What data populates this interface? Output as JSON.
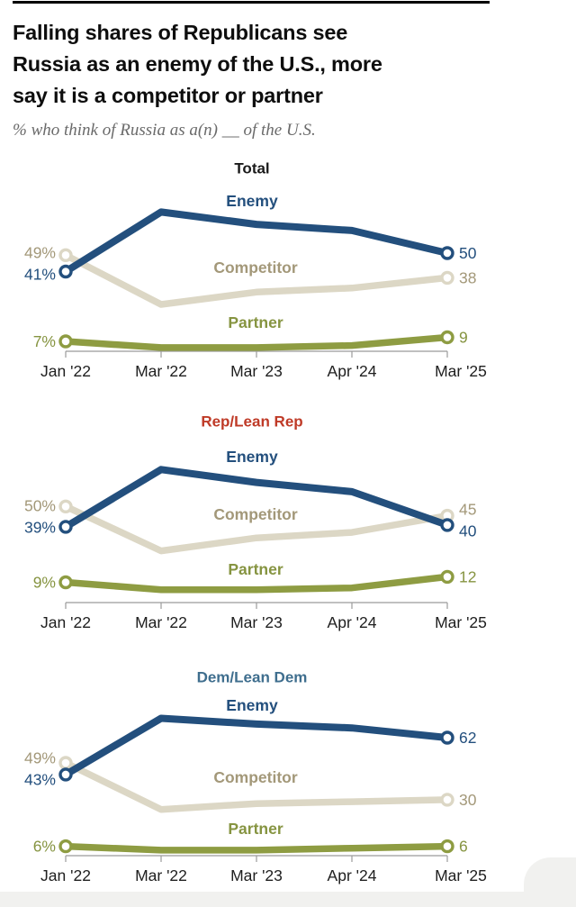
{
  "header": {
    "title_lines": [
      "Falling shares of Republicans see",
      "Russia as an enemy of the U.S., more",
      "say it is a competitor or partner"
    ],
    "subtitle": "% who think of Russia as a(n) __ of the U.S."
  },
  "colors": {
    "enemy_line": "#234f7d",
    "enemy_text": "#234f7d",
    "competitor_line": "#dcd7c5",
    "competitor_text": "#a39879",
    "partner_line": "#8e9c42",
    "partner_text": "#869441",
    "axis": "#9b9b9b",
    "x_label_text": "#202020",
    "total_title": "#1a1a1a",
    "rep_title": "#bf3a27",
    "dem_title": "#3f6e8e"
  },
  "x_labels": [
    "Jan '22",
    "Mar '22",
    "Mar '23",
    "Apr '24",
    "Mar '25"
  ],
  "chart_data": [
    {
      "id": "total",
      "type": "line",
      "title": "Total",
      "title_color": "#1a1a1a",
      "x": [
        "Jan '22",
        "Mar '22",
        "Mar '23",
        "Apr '24",
        "Mar '25"
      ],
      "ylim": [
        0,
        75
      ],
      "grid": false,
      "legend": "inline-labels",
      "series": [
        {
          "name": "Enemy",
          "role": "enemy",
          "values": [
            41,
            70,
            64,
            61,
            50
          ],
          "start_label": "41%",
          "end_label": "50"
        },
        {
          "name": "Competitor",
          "role": "competitor",
          "values": [
            49,
            25,
            31,
            33,
            38
          ],
          "start_label": "49%",
          "end_label": "38"
        },
        {
          "name": "Partner",
          "role": "partner",
          "values": [
            7,
            4,
            4,
            5,
            9
          ],
          "start_label": "7%",
          "end_label": "9"
        }
      ]
    },
    {
      "id": "rep",
      "type": "line",
      "title": "Rep/Lean Rep",
      "title_color": "#bf3a27",
      "x": [
        "Jan '22",
        "Mar '22",
        "Mar '23",
        "Apr '24",
        "Mar '25"
      ],
      "ylim": [
        0,
        75
      ],
      "grid": false,
      "legend": "inline-labels",
      "series": [
        {
          "name": "Enemy",
          "role": "enemy",
          "values": [
            39,
            70,
            63,
            58,
            40
          ],
          "start_label": "39%",
          "end_label": "40"
        },
        {
          "name": "Competitor",
          "role": "competitor",
          "values": [
            50,
            26,
            33,
            36,
            45
          ],
          "start_label": "50%",
          "end_label": "45"
        },
        {
          "name": "Partner",
          "role": "partner",
          "values": [
            9,
            5,
            5,
            6,
            12
          ],
          "start_label": "9%",
          "end_label": "12"
        }
      ]
    },
    {
      "id": "dem",
      "type": "line",
      "title": "Dem/Lean Dem",
      "title_color": "#3f6e8e",
      "x": [
        "Jan '22",
        "Mar '22",
        "Mar '23",
        "Apr '24",
        "Mar '25"
      ],
      "ylim": [
        0,
        75
      ],
      "grid": false,
      "legend": "inline-labels",
      "series": [
        {
          "name": "Enemy",
          "role": "enemy",
          "values": [
            43,
            72,
            69,
            67,
            62
          ],
          "start_label": "43%",
          "end_label": "62"
        },
        {
          "name": "Competitor",
          "role": "competitor",
          "values": [
            49,
            25,
            28,
            29,
            30
          ],
          "start_label": "49%",
          "end_label": "30"
        },
        {
          "name": "Partner",
          "role": "partner",
          "values": [
            6,
            4,
            4,
            5,
            6
          ],
          "start_label": "6%",
          "end_label": "6"
        }
      ]
    }
  ]
}
